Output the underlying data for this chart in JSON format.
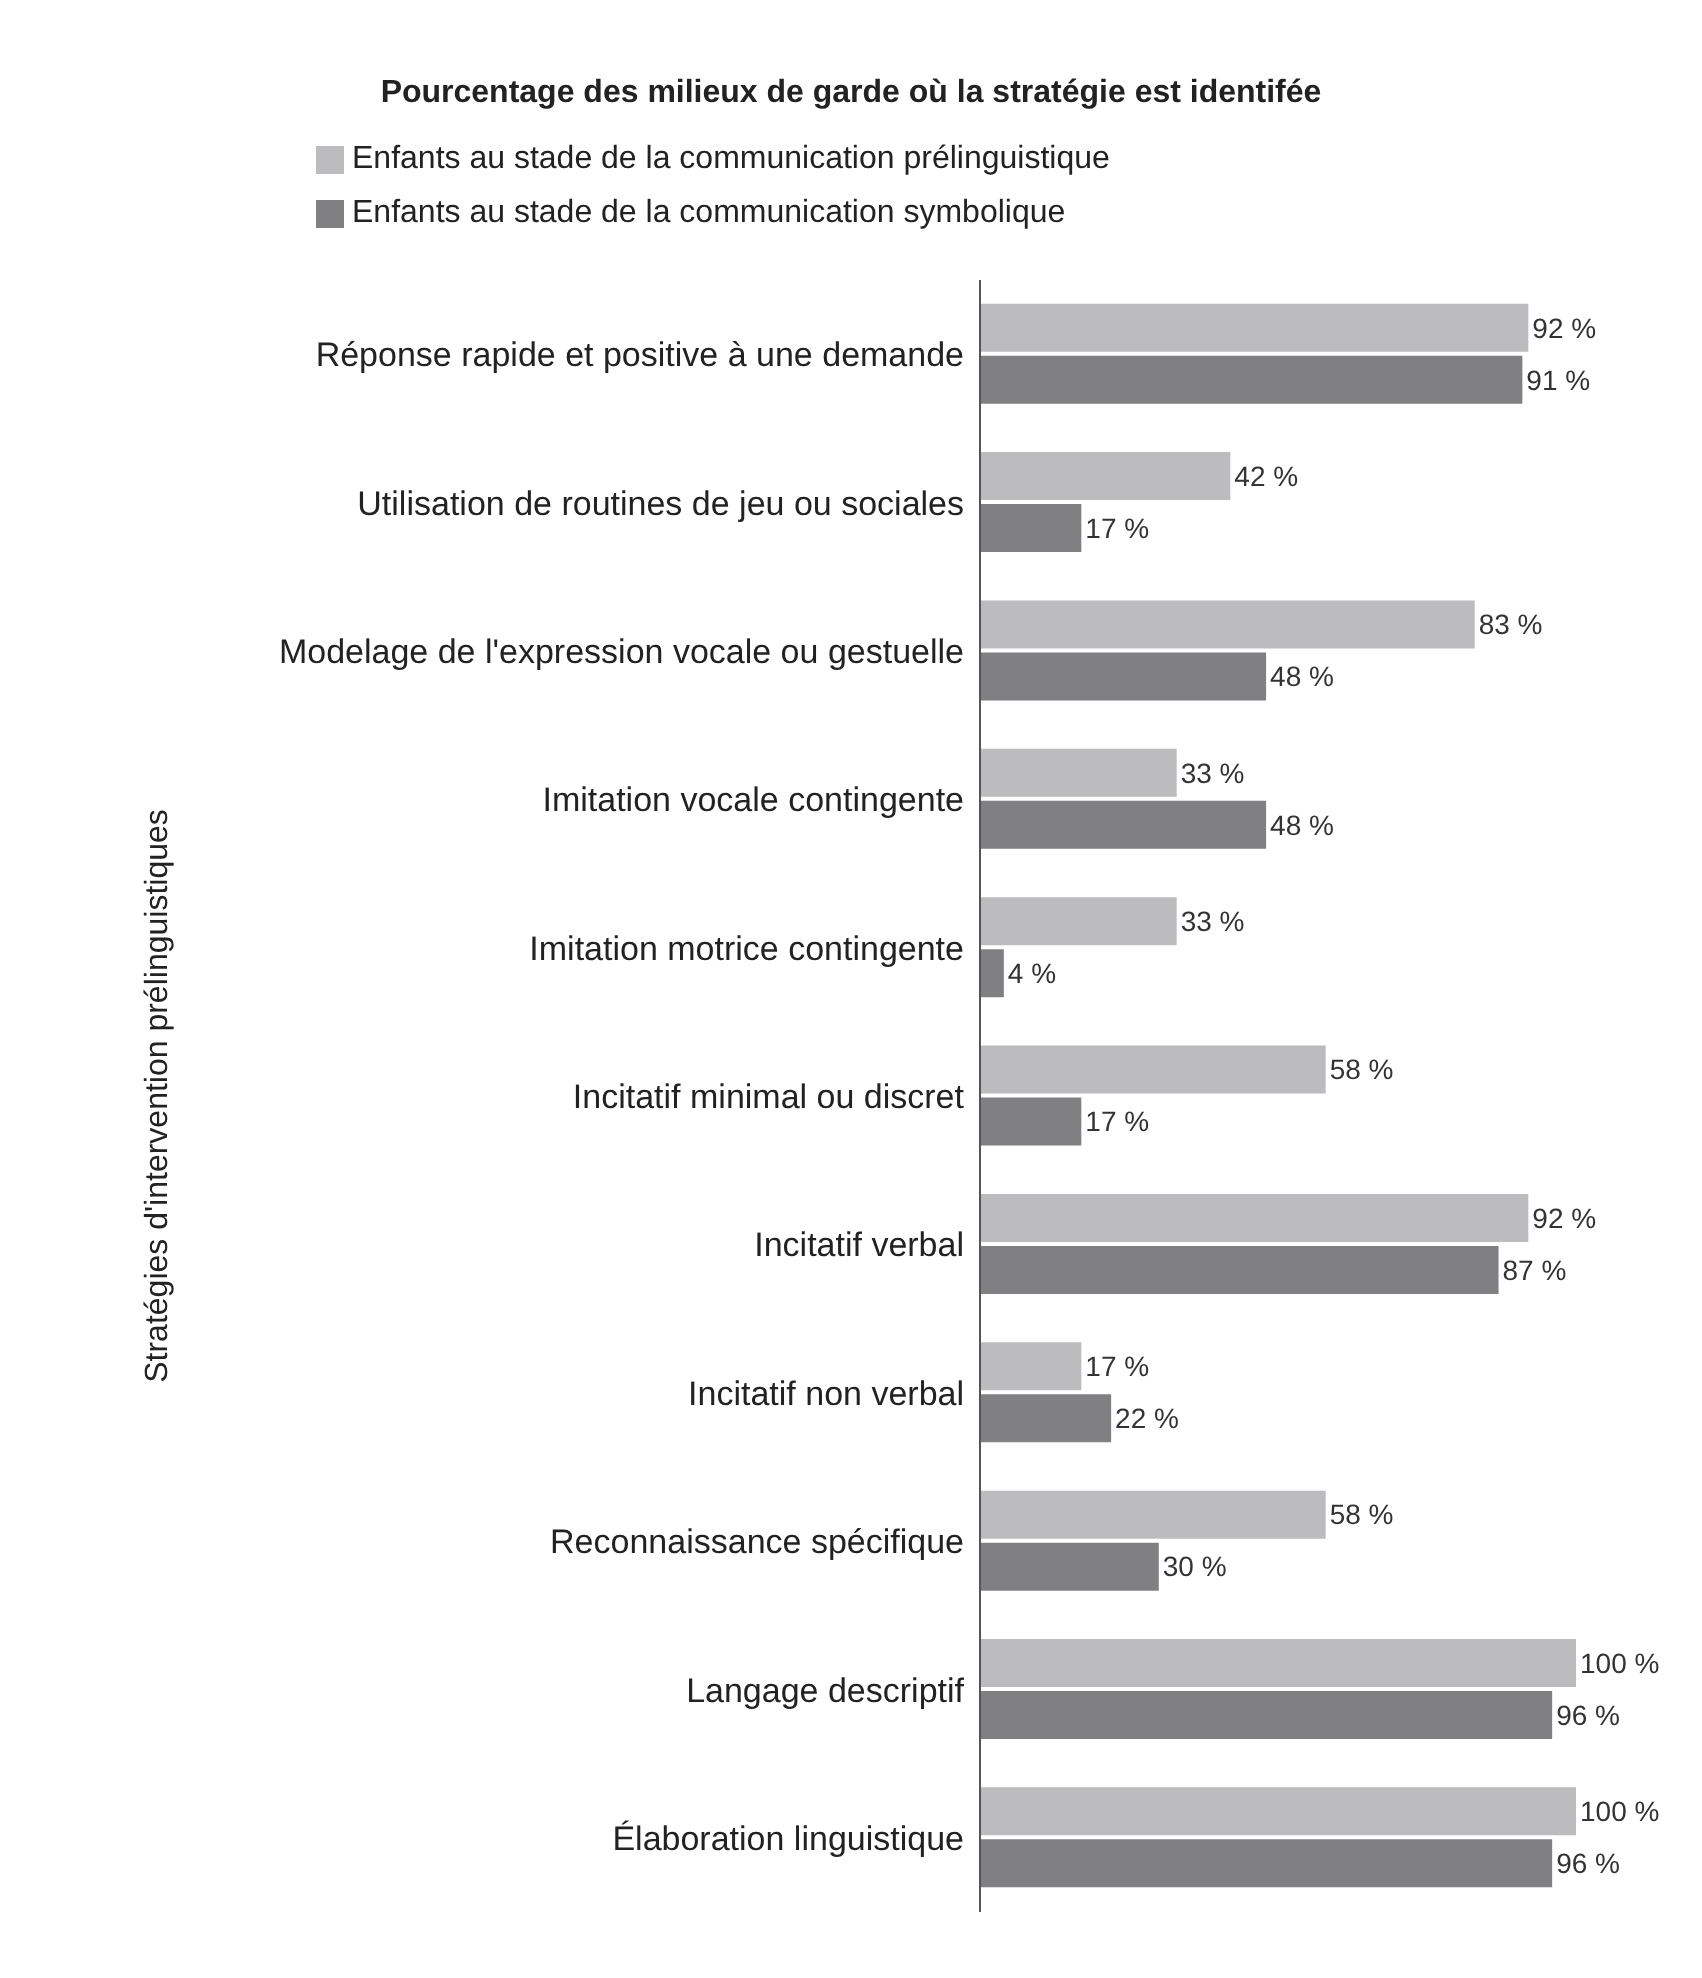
{
  "chart_data": {
    "type": "bar",
    "orientation": "horizontal",
    "title": "Pourcentage des milieux de garde où la stratégie est identifée",
    "ylabel": "Stratégies d'intervention prélinguistiques",
    "categories": [
      "Réponse rapide et positive à une demande",
      "Utilisation de routines de jeu ou sociales",
      "Modelage de l'expression vocale ou gestuelle",
      "Imitation vocale contingente",
      "Imitation motrice contingente",
      "Incitatif minimal ou discret",
      "Incitatif verbal",
      "Incitatif non verbal",
      "Reconnaissance spécifique",
      "Langage descriptif",
      "Élaboration linguistique"
    ],
    "series": [
      {
        "name": "Enfants au stade de la communication prélinguistique",
        "color": "#bcbcbe",
        "values": [
          92,
          42,
          83,
          33,
          33,
          58,
          92,
          17,
          58,
          100,
          100
        ],
        "value_labels": [
          "92 %",
          "42 %",
          "83 %",
          "33 %",
          "33 %",
          "58 %",
          "92 %",
          "17 %",
          "58 %",
          "100 %",
          "100 %"
        ]
      },
      {
        "name": "Enfants au stade de la communication symbolique",
        "color": "#808083",
        "values": [
          91,
          17,
          48,
          48,
          4,
          17,
          87,
          22,
          30,
          96,
          96
        ],
        "value_labels": [
          "91 %",
          "17 %",
          "48 %",
          "48 %",
          "4 %",
          "17 %",
          "87 %",
          "22 %",
          "30 %",
          "96 %",
          "96 %"
        ]
      }
    ],
    "xlim": [
      0,
      100
    ],
    "tick_labels": "y",
    "legend": "top left"
  }
}
